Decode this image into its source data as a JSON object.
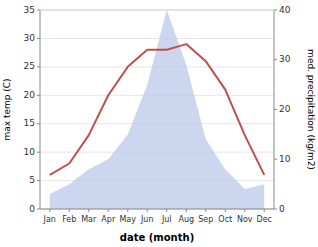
{
  "chart_data": {
    "type": "line",
    "categories": [
      "Jan",
      "Feb",
      "Mar",
      "Apr",
      "May",
      "Jun",
      "Jul",
      "Aug",
      "Sep",
      "Oct",
      "Nov",
      "Dec"
    ],
    "x_label": "date (month)",
    "y_label": "max temp (C)",
    "y2_label": "med. precipitation (kg/m2)",
    "series": [
      {
        "type": "line",
        "color": "#c0504d",
        "values": [
          6,
          8,
          13,
          20,
          25,
          28,
          28,
          29,
          26,
          21,
          13,
          6
        ]
      },
      {
        "type": "area",
        "axis": "y2",
        "color": "#b8c4e8",
        "values": [
          3,
          5,
          8,
          10,
          15,
          25,
          40,
          29,
          14,
          8,
          4,
          5
        ]
      }
    ],
    "ylim": [
      0,
      35
    ],
    "yticks": [
      0,
      5,
      10,
      15,
      20,
      25,
      30,
      35
    ],
    "y2lim": [
      0,
      40
    ],
    "y2ticks": [
      0,
      10,
      20,
      30,
      40
    ]
  }
}
